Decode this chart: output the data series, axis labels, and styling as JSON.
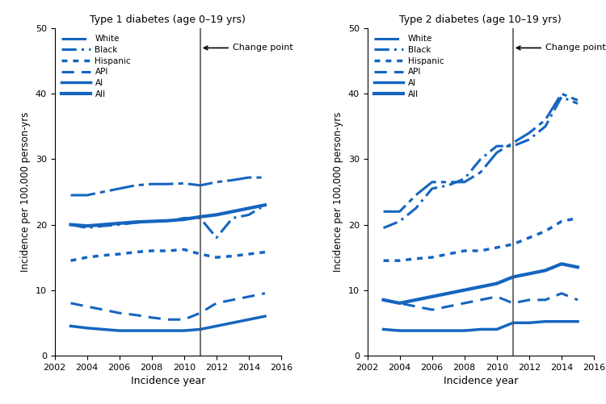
{
  "title1": "Type 1 diabetes (age 0–19 yrs)",
  "title2": "Type 2 diabetes (age 10–19 yrs)",
  "xlabel": "Incidence year",
  "ylabel": "Incidence per 100,000 person-yrs",
  "change_point": 2011,
  "change_point_label": "Change point",
  "ylim": [
    0,
    50
  ],
  "yticks": [
    0,
    10,
    20,
    30,
    40,
    50
  ],
  "xlim": [
    2002,
    2016
  ],
  "xticks": [
    2002,
    2004,
    2006,
    2008,
    2010,
    2012,
    2014,
    2016
  ],
  "line_color": "#1565c0",
  "legend_labels": [
    "White",
    "Black",
    "Hispanic",
    "API",
    "AI",
    "All"
  ],
  "t1_years": [
    2003,
    2004,
    2005,
    2006,
    2007,
    2008,
    2009,
    2010,
    2011,
    2012,
    2013,
    2014,
    2015
  ],
  "t1_white": [
    24.5,
    24.5,
    25.0,
    25.5,
    26.0,
    26.2,
    26.2,
    26.3,
    26.0,
    26.5,
    26.8,
    27.2,
    27.2
  ],
  "t1_black": [
    20.0,
    19.5,
    19.8,
    20.0,
    20.3,
    20.5,
    20.5,
    21.0,
    21.0,
    18.0,
    21.0,
    21.5,
    23.0
  ],
  "t1_hispanic": [
    14.5,
    15.0,
    15.3,
    15.5,
    15.8,
    16.0,
    16.0,
    16.2,
    15.5,
    15.0,
    15.2,
    15.5,
    15.8
  ],
  "t1_api": [
    8.0,
    7.5,
    7.0,
    6.5,
    6.2,
    5.8,
    5.5,
    5.5,
    6.5,
    8.0,
    8.5,
    9.0,
    9.5
  ],
  "t1_ai": [
    4.5,
    4.2,
    4.0,
    3.8,
    3.8,
    3.8,
    3.8,
    3.8,
    4.0,
    4.5,
    5.0,
    5.5,
    6.0
  ],
  "t1_all": [
    20.0,
    19.8,
    20.0,
    20.2,
    20.4,
    20.5,
    20.6,
    20.8,
    21.2,
    21.5,
    22.0,
    22.5,
    23.0
  ],
  "t2_years": [
    2003,
    2004,
    2005,
    2006,
    2007,
    2008,
    2009,
    2010,
    2011,
    2012,
    2013,
    2014,
    2015
  ],
  "t2_white": [
    22.0,
    22.0,
    24.5,
    26.5,
    26.5,
    26.5,
    28.0,
    31.0,
    32.5,
    34.0,
    36.0,
    40.0,
    39.0
  ],
  "t2_black": [
    19.5,
    20.5,
    22.5,
    25.5,
    26.0,
    27.0,
    30.0,
    32.0,
    32.0,
    33.0,
    35.0,
    39.5,
    38.5
  ],
  "t2_hispanic": [
    14.5,
    14.5,
    14.8,
    15.0,
    15.5,
    16.0,
    16.0,
    16.5,
    17.0,
    18.0,
    19.0,
    20.5,
    21.0
  ],
  "t2_api": [
    8.5,
    8.0,
    7.5,
    7.0,
    7.5,
    8.0,
    8.5,
    9.0,
    8.0,
    8.5,
    8.5,
    9.5,
    8.5
  ],
  "t2_ai": [
    4.0,
    3.8,
    3.8,
    3.8,
    3.8,
    3.8,
    4.0,
    4.0,
    5.0,
    5.0,
    5.2,
    5.2,
    5.2
  ],
  "t2_all": [
    8.5,
    8.0,
    8.5,
    9.0,
    9.5,
    10.0,
    10.5,
    11.0,
    12.0,
    12.5,
    13.0,
    14.0,
    13.5
  ]
}
